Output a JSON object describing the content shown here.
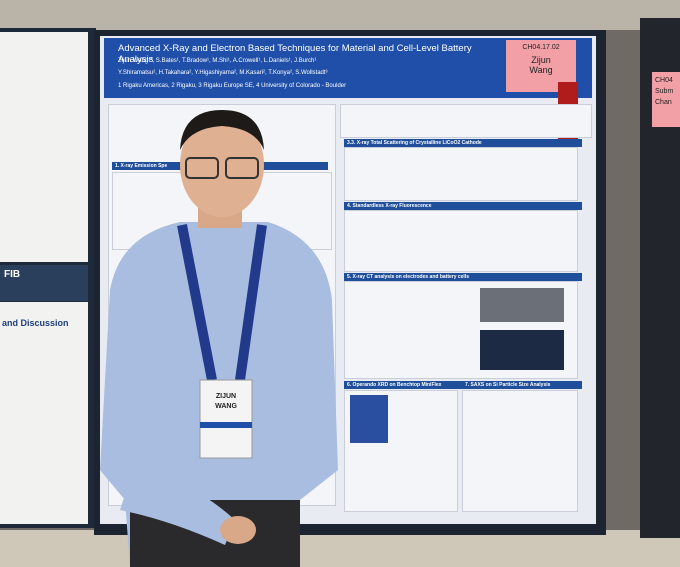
{
  "poster": {
    "title": "Advanced X-Ray and Electron Based Techniques for Material and Cell-Level Battery Analysis",
    "authors_line1": "Zijun Wang¹*, S.Bates¹, T.Bradow¹, M.Shi¹, A.Crowell¹, L.Daniels¹, J.Burch¹",
    "authors_line2": "Y.Shiramatsu², H.Takahara², Y.Higashiyama², M.Kasari², T.Konya², S.Wollstadt³",
    "affiliations": "1 Rigaku Americas, 2 Rigaku, 3 Rigaku Europe SE, 4 University of Colorado - Boulder",
    "tag_code": "CH04.17.02",
    "tag_name_first": "Zijun",
    "tag_name_last": "Wang",
    "sections": [
      "1. X-ray Emission Spe",
      "3.3. X-ray Total Scattering of Crystalline LiCoO2 Cathode",
      "4. Standardless X-ray Fluorescence",
      "5. X-ray CT analysis on electrodes and battery cells",
      "6. Operando XRD on Benchtop MiniFlex",
      "7. SAXS on Si Particle Size Analysis"
    ]
  },
  "left_poster": {
    "heading_fib": "FIB",
    "heading_discussion": "and Discussion"
  },
  "right_poster": {
    "tag": "CH04",
    "line1": "Subm",
    "line2": "Chan"
  },
  "badge": {
    "name_first": "ZIJUN",
    "name_last": "WANG"
  }
}
